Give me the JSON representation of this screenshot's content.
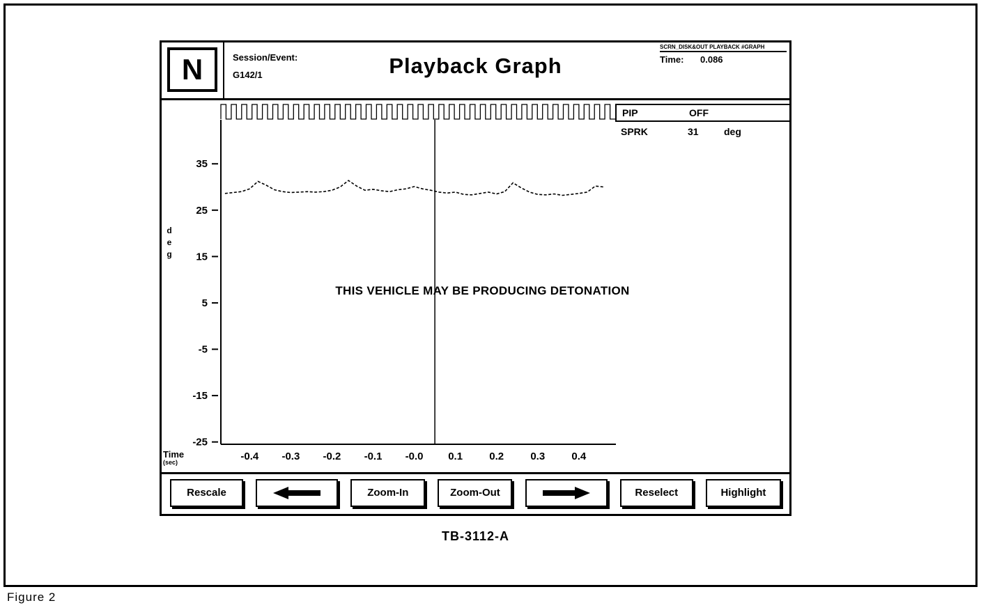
{
  "figure": {
    "caption": "Figure 2",
    "code": "TB-3112-A"
  },
  "header": {
    "logo": "N",
    "session_label": "Session/Event:",
    "session_value": "G142/1",
    "title": "Playback Graph",
    "screen_path": "SCRN_DISK&OUT PLAYBACK #GRAPH",
    "time_label": "Time:",
    "time_value": "0.086"
  },
  "signal_panel": {
    "pip_label": "PIP",
    "pip_value": "OFF",
    "sprk_label": "SPRK",
    "sprk_value": "31",
    "sprk_unit": "deg"
  },
  "toolbar": {
    "buttons": [
      {
        "id": "rescale",
        "label": "Rescale"
      },
      {
        "id": "step-left",
        "icon": "arrow-left-icon"
      },
      {
        "id": "zoom-in",
        "label": "Zoom-In"
      },
      {
        "id": "zoom-out",
        "label": "Zoom-Out"
      },
      {
        "id": "step-right",
        "icon": "arrow-right-icon"
      },
      {
        "id": "reselect",
        "label": "Reselect"
      },
      {
        "id": "highlight",
        "label": "Highlight"
      }
    ]
  },
  "chart_data": {
    "type": "line",
    "title": "Playback Graph",
    "xlabel": "Time",
    "xlabel_unit": "(sec)",
    "ylabel": "deg",
    "xlim": [
      -0.47,
      0.49
    ],
    "ylim": [
      -25.5,
      44.5
    ],
    "x_ticks": [
      -0.4,
      -0.3,
      -0.2,
      -0.1,
      0,
      0.1,
      0.2,
      0.3,
      0.4
    ],
    "x_tick_labels": [
      "-0.4",
      "-0.3",
      "-0.2",
      "-0.1",
      "-0.0",
      "0.1",
      "0.2",
      "0.3",
      "0.4"
    ],
    "y_ticks": [
      35,
      25,
      15,
      5,
      -5,
      -15,
      -25
    ],
    "grid": false,
    "legend": "none",
    "cursor_x": 0.05,
    "annotation": "THIS VEHICLE MAY BE PRODUCING DETONATION",
    "series": [
      {
        "name": "SPRK",
        "unit": "deg",
        "style": "dotted",
        "x": [
          -0.46,
          -0.44,
          -0.42,
          -0.4,
          -0.38,
          -0.36,
          -0.34,
          -0.32,
          -0.3,
          -0.28,
          -0.26,
          -0.24,
          -0.22,
          -0.2,
          -0.18,
          -0.16,
          -0.14,
          -0.12,
          -0.1,
          -0.08,
          -0.06,
          -0.04,
          -0.02,
          0.0,
          0.02,
          0.04,
          0.06,
          0.08,
          0.1,
          0.12,
          0.14,
          0.16,
          0.18,
          0.2,
          0.22,
          0.24,
          0.26,
          0.28,
          0.3,
          0.32,
          0.34,
          0.36,
          0.38,
          0.4,
          0.42,
          0.44,
          0.46
        ],
        "y": [
          28.6,
          28.8,
          29.0,
          29.6,
          31.2,
          30.4,
          29.4,
          29.0,
          28.8,
          28.9,
          29.0,
          28.9,
          29.0,
          29.3,
          30.0,
          31.4,
          30.2,
          29.3,
          29.5,
          29.2,
          29.0,
          29.4,
          29.6,
          30.1,
          29.6,
          29.3,
          28.9,
          28.7,
          28.9,
          28.4,
          28.3,
          28.6,
          28.9,
          28.5,
          29.0,
          30.9,
          29.8,
          28.9,
          28.4,
          28.3,
          28.5,
          28.2,
          28.4,
          28.6,
          28.9,
          30.2,
          30.0
        ]
      }
    ],
    "pip_trace": {
      "name": "PIP",
      "shape": "square-wave",
      "pulses": 38
    }
  }
}
